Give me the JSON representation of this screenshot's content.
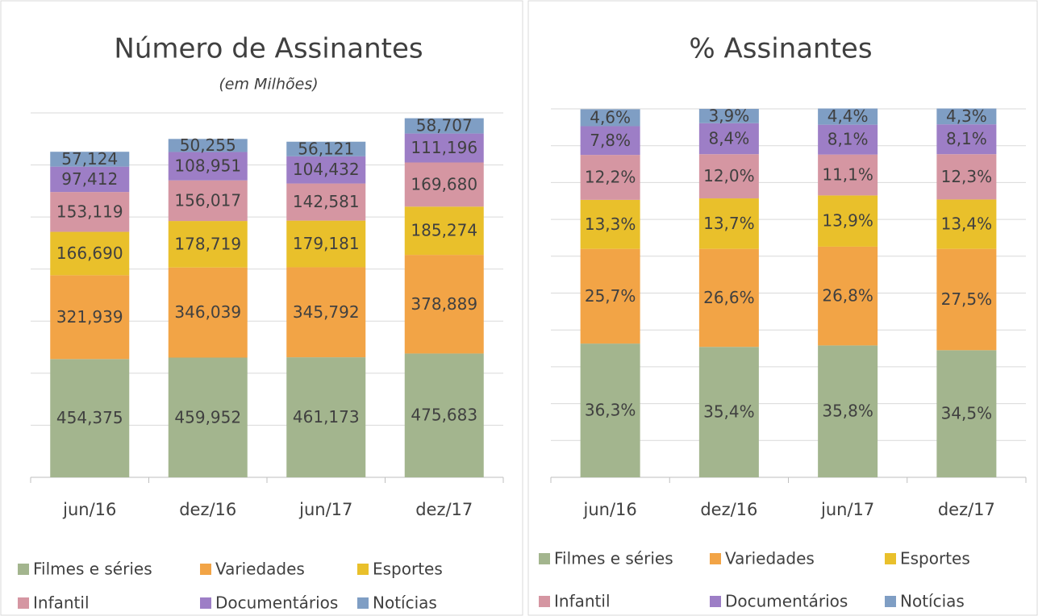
{
  "chart_data": [
    {
      "type": "stacked_bar",
      "title": "Número de Assinantes",
      "subtitle": "(em Milhões)",
      "categories": [
        "jun/16",
        "dez/16",
        "jun/17",
        "dez/17"
      ],
      "ylim": [
        0,
        1400
      ],
      "yticks": [
        0,
        200,
        400,
        600,
        800,
        1000,
        1200,
        1400
      ],
      "grid": true,
      "legend": "bottom",
      "series": [
        {
          "name": "Filmes e séries",
          "color": "#a3b58e",
          "values": [
            454.375,
            459.952,
            461.173,
            475.683
          ],
          "value_labels": [
            "454,375",
            "459,952",
            "461,173",
            "475,683"
          ]
        },
        {
          "name": "Variedades",
          "color": "#f2a446",
          "values": [
            321.939,
            346.039,
            345.792,
            378.889
          ],
          "value_labels": [
            "321,939",
            "346,039",
            "345,792",
            "378,889"
          ]
        },
        {
          "name": "Esportes",
          "color": "#e9c02b",
          "values": [
            166.69,
            178.719,
            179.181,
            185.274
          ],
          "value_labels": [
            "166,690",
            "178,719",
            "179,181",
            "185,274"
          ]
        },
        {
          "name": "Infantil",
          "color": "#d596a2",
          "values": [
            153.119,
            156.017,
            142.581,
            169.68
          ],
          "value_labels": [
            "153,119",
            "156,017",
            "142,581",
            "169,680"
          ]
        },
        {
          "name": "Documentários",
          "color": "#9d7ec6",
          "values": [
            97.412,
            108.951,
            104.432,
            111.196
          ],
          "value_labels": [
            "97,412",
            "108,951",
            "104,432",
            "111,196"
          ]
        },
        {
          "name": "Notícias",
          "color": "#7f9ec4",
          "values": [
            57.124,
            50.255,
            56.121,
            58.707
          ],
          "value_labels": [
            "57,124",
            "50,255",
            "56,121",
            "58,707"
          ]
        }
      ]
    },
    {
      "type": "stacked_bar",
      "title": "% Assinantes",
      "categories": [
        "jun/16",
        "dez/16",
        "jun/17",
        "dez/17"
      ],
      "ylim": [
        0,
        100
      ],
      "yticks": [
        0,
        10,
        20,
        30,
        40,
        50,
        60,
        70,
        80,
        90,
        100
      ],
      "grid": true,
      "legend": "bottom",
      "series": [
        {
          "name": "Filmes e séries",
          "color": "#a3b58e",
          "values": [
            36.3,
            35.4,
            35.8,
            34.5
          ],
          "value_labels": [
            "36,3%",
            "35,4%",
            "35,8%",
            "34,5%"
          ]
        },
        {
          "name": "Variedades",
          "color": "#f2a446",
          "values": [
            25.7,
            26.6,
            26.8,
            27.5
          ],
          "value_labels": [
            "25,7%",
            "26,6%",
            "26,8%",
            "27,5%"
          ]
        },
        {
          "name": "Esportes",
          "color": "#e9c02b",
          "values": [
            13.3,
            13.7,
            13.9,
            13.4
          ],
          "value_labels": [
            "13,3%",
            "13,7%",
            "13,9%",
            "13,4%"
          ]
        },
        {
          "name": "Infantil",
          "color": "#d596a2",
          "values": [
            12.2,
            12.0,
            11.1,
            12.3
          ],
          "value_labels": [
            "12,2%",
            "12,0%",
            "11,1%",
            "12,3%"
          ]
        },
        {
          "name": "Documentários",
          "color": "#9d7ec6",
          "values": [
            7.8,
            8.4,
            8.1,
            8.1
          ],
          "value_labels": [
            "7,8%",
            "8,4%",
            "8,1%",
            "8,1%"
          ]
        },
        {
          "name": "Notícias",
          "color": "#7f9ec4",
          "values": [
            4.6,
            3.9,
            4.4,
            4.3
          ],
          "value_labels": [
            "4,6%",
            "3,9%",
            "4,4%",
            "4,3%"
          ]
        }
      ]
    }
  ]
}
